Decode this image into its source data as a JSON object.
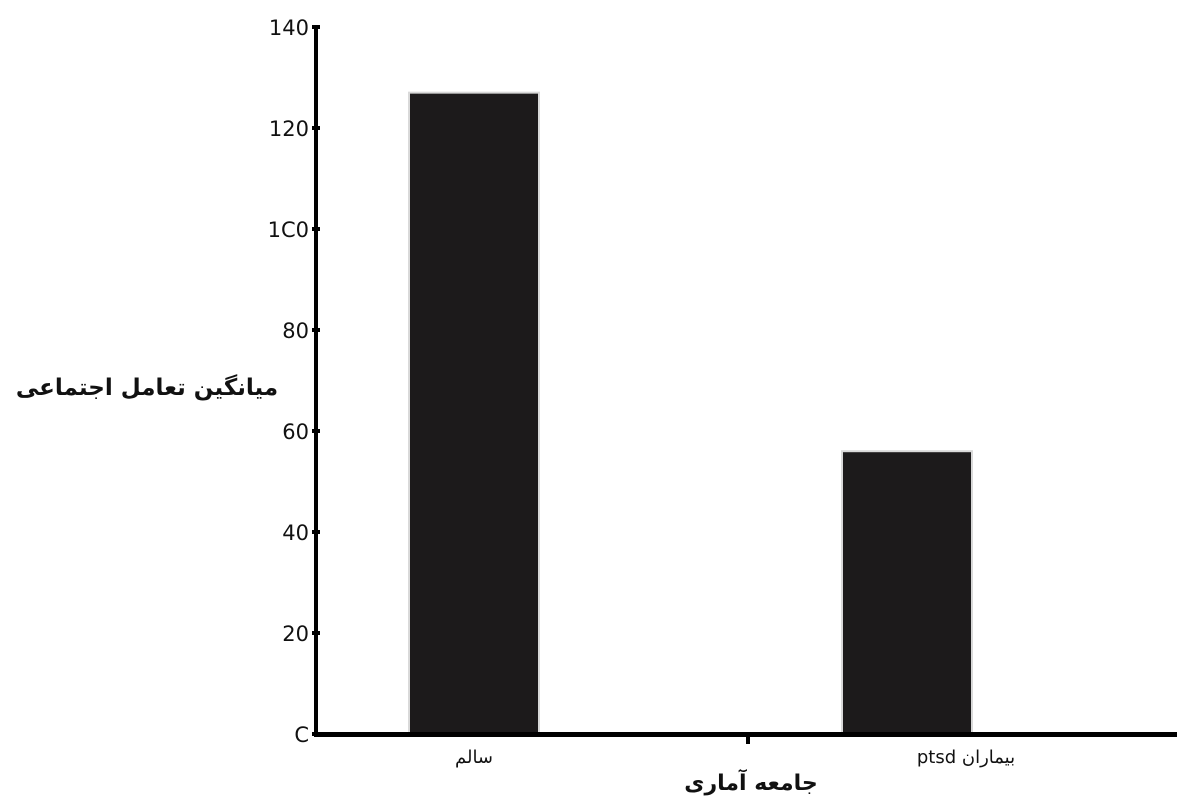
{
  "chart_data": {
    "type": "bar",
    "categories": [
      "سالم",
      "بیماران ptsd"
    ],
    "values": [
      127,
      56
    ],
    "xlabel": "جامعه آماری",
    "ylabel": "میانگین تعامل اجتماعی",
    "ylim": [
      0,
      140
    ],
    "yticks": [
      0,
      20,
      40,
      60,
      80,
      100,
      120,
      140
    ],
    "ytick_labels": [
      "C",
      "20",
      "40",
      "60",
      "80",
      "1C0",
      "120",
      "140"
    ],
    "grid": false,
    "colors": {
      "bar": "#1c1a1b",
      "bar_edge": "#d9d9d9",
      "axis": "#000000",
      "text": "#111111"
    }
  }
}
